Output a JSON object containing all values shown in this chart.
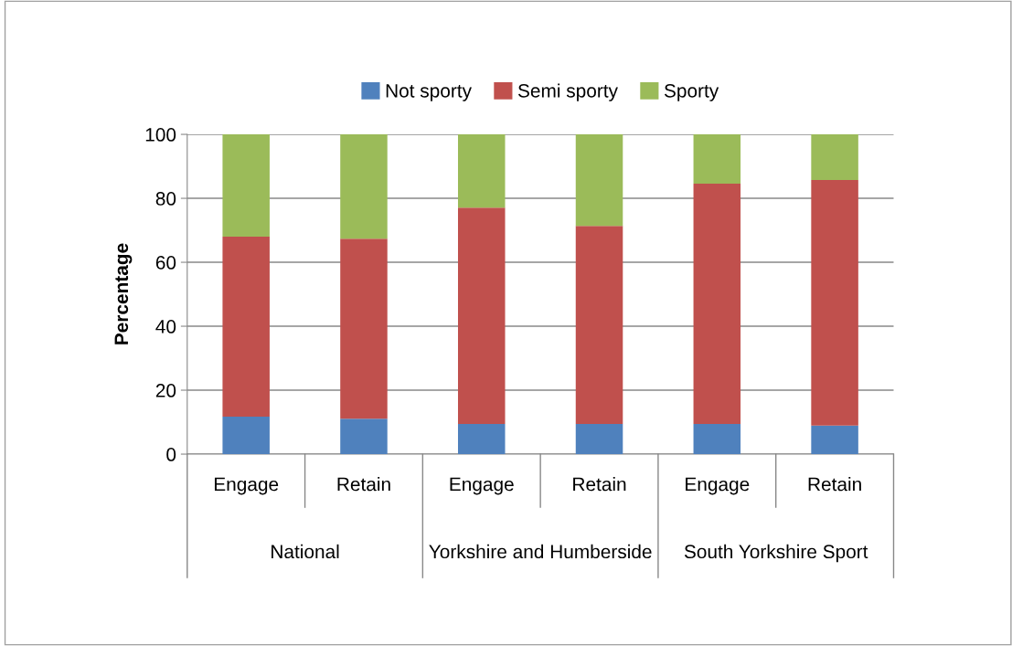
{
  "chart_data": {
    "type": "bar",
    "stacked": true,
    "ylabel": "Percentage",
    "categories": [
      "Engage",
      "Retain",
      "Engage",
      "Retain",
      "Engage",
      "Retain"
    ],
    "annotations": [
      "National",
      "Yorkshire and Humberside",
      "South Yorkshire Sport"
    ],
    "series": [
      {
        "name": "Not sporty",
        "color": "#4f81bd",
        "values": [
          11.7,
          11.1,
          9.4,
          9.4,
          9.4,
          8.9
        ]
      },
      {
        "name": "Semi sporty",
        "color": "#c0504d",
        "values": [
          56.3,
          56.3,
          67.7,
          62.0,
          75.2,
          76.8
        ]
      },
      {
        "name": "Sporty",
        "color": "#9bbb59",
        "values": [
          32.0,
          32.6,
          22.9,
          28.6,
          15.4,
          14.3
        ]
      }
    ],
    "ylim": [
      0,
      100
    ],
    "yticks": [
      0,
      20,
      40,
      60,
      80,
      100
    ],
    "grid": "y",
    "legend": "top"
  }
}
